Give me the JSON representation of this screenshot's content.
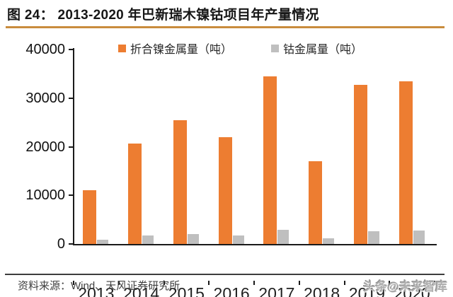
{
  "header": {
    "title": "图 24： 2013-2020 年巴新瑞木镍钴项目年产量情况"
  },
  "chart_data": {
    "type": "bar",
    "title": "2013-2020 年巴新瑞木镍钴项目年产量情况",
    "categories": [
      "2013",
      "2014",
      "2015",
      "2016",
      "2017",
      "2018",
      "2019",
      "2020"
    ],
    "series": [
      {
        "name": "折合镍金属量（吨）",
        "color": "#ED7D31",
        "values": [
          11100,
          20700,
          25400,
          22000,
          34500,
          17000,
          32700,
          33500
        ]
      },
      {
        "name": "钴金属量（吨）",
        "color": "#BFBFBF",
        "values": [
          900,
          1700,
          2100,
          1800,
          2900,
          1200,
          2600,
          2700
        ]
      }
    ],
    "ylim": [
      0,
      40000
    ],
    "yticks": [
      0,
      10000,
      20000,
      30000,
      40000
    ],
    "xlabel": "",
    "ylabel": "",
    "grid": false,
    "legend_position": "top"
  },
  "footer": {
    "source": "资料来源：Wind、天风证券研究所",
    "watermark": "头条@未来智库"
  },
  "colors": {
    "accent_rule": "#C98C3D",
    "footer_rule": "#3D3D3D",
    "axis": "#1A1A1A",
    "nickel": "#ED7D31",
    "cobalt": "#BFBFBF"
  }
}
